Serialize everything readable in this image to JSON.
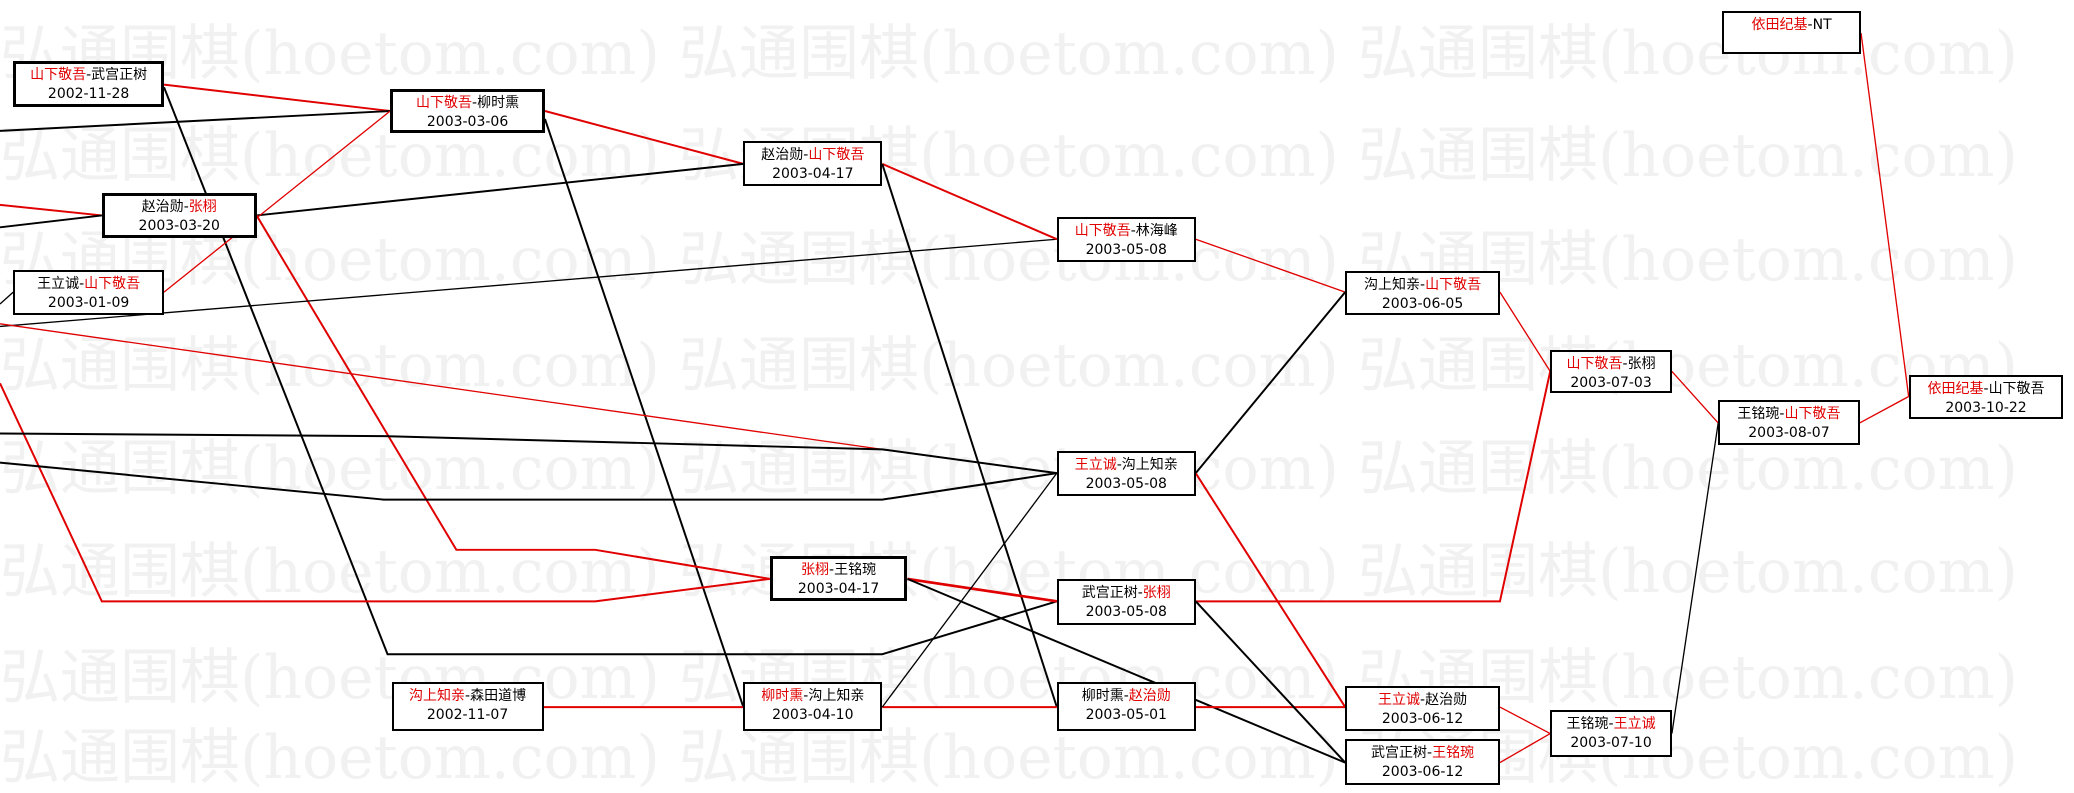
{
  "watermark": "弘通围棋(hoetom.com)",
  "colors": {
    "winner": "#e00000",
    "loser": "#000000"
  },
  "games": [
    {
      "p1": "山下敬吾",
      "p2": "武宫正树",
      "winner": 1,
      "date": "2002-11-28"
    },
    {
      "p1": "山下敬吾",
      "p2": "柳时熏",
      "winner": 1,
      "date": "2003-03-06"
    },
    {
      "p1": "赵治勋",
      "p2": "张栩",
      "winner": 2,
      "date": "2003-03-20"
    },
    {
      "p1": "王立诚",
      "p2": "山下敬吾",
      "winner": 2,
      "date": "2003-01-09"
    },
    {
      "p1": "赵治勋",
      "p2": "山下敬吾",
      "winner": 2,
      "date": "2003-04-17"
    },
    {
      "p1": "山下敬吾",
      "p2": "林海峰",
      "winner": 1,
      "date": "2003-05-08"
    },
    {
      "p1": "沟上知亲",
      "p2": "山下敬吾",
      "winner": 2,
      "date": "2003-06-05"
    },
    {
      "p1": "山下敬吾",
      "p2": "张栩",
      "winner": 1,
      "date": "2003-07-03"
    },
    {
      "p1": "王铭琬",
      "p2": "山下敬吾",
      "winner": 2,
      "date": "2003-08-07"
    },
    {
      "p1": "依田纪基",
      "p2": "山下敬吾",
      "winner": 1,
      "date": "2003-10-22"
    },
    {
      "p1": "依田纪基",
      "p2": "NT",
      "winner": 1,
      "date": ""
    },
    {
      "p1": "王立诚",
      "p2": "沟上知亲",
      "winner": 1,
      "date": "2003-05-08"
    },
    {
      "p1": "张栩",
      "p2": "王铭琬",
      "winner": 1,
      "date": "2003-04-17"
    },
    {
      "p1": "武宫正树",
      "p2": "张栩",
      "winner": 2,
      "date": "2003-05-08"
    },
    {
      "p1": "沟上知亲",
      "p2": "森田道博",
      "winner": 1,
      "date": "2002-11-07"
    },
    {
      "p1": "柳时熏",
      "p2": "沟上知亲",
      "winner": 1,
      "date": "2003-04-10"
    },
    {
      "p1": "柳时熏",
      "p2": "赵治勋",
      "winner": 2,
      "date": "2003-05-01"
    },
    {
      "p1": "王立诚",
      "p2": "赵治勋",
      "winner": 1,
      "date": "2003-06-12"
    },
    {
      "p1": "武宫正树",
      "p2": "王铭琬",
      "winner": 2,
      "date": "2003-06-12"
    },
    {
      "p1": "王铭琬",
      "p2": "王立诚",
      "winner": 2,
      "date": "2003-07-10"
    }
  ]
}
